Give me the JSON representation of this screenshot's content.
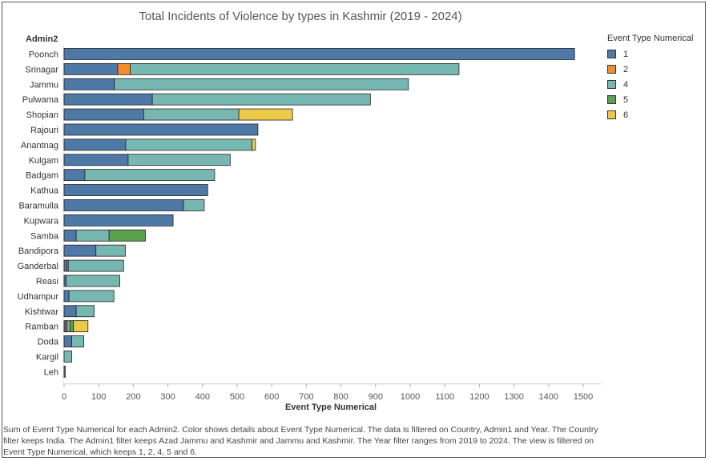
{
  "chart_data": {
    "type": "bar",
    "orientation": "horizontal",
    "stacked": true,
    "title": "Total Incidents of Violence by types  in Kashmir (2019 - 2024)",
    "row_header": "Admin2",
    "xlabel": "Event Type Numerical",
    "xlim": [
      0,
      1500
    ],
    "x_ticks": [
      0,
      100,
      200,
      300,
      400,
      500,
      600,
      700,
      800,
      900,
      1000,
      1100,
      1200,
      1300,
      1400,
      1500
    ],
    "categories": [
      "Poonch",
      "Srinagar",
      "Jammu",
      "Pulwama",
      "Shopian",
      "Rajouri",
      "Anantnag",
      "Kulgam",
      "Badgam",
      "Kathua",
      "Baramulla",
      "Kupwara",
      "Samba",
      "Bandipora",
      "Ganderbal",
      "Reasi",
      "Udhampur",
      "Kishtwar",
      "Ramban",
      "Doda",
      "Kargil",
      "Leh"
    ],
    "series": [
      {
        "name": "1",
        "color": "#4e79a7",
        "values": [
          1475,
          155,
          145,
          255,
          230,
          560,
          178,
          185,
          60,
          415,
          345,
          315,
          35,
          92,
          8,
          6,
          14,
          35,
          5,
          22,
          0,
          2
        ]
      },
      {
        "name": "2",
        "color": "#f28e2b",
        "values": [
          0,
          36,
          0,
          0,
          0,
          0,
          0,
          0,
          0,
          0,
          0,
          0,
          0,
          0,
          4,
          0,
          0,
          0,
          4,
          0,
          0,
          0
        ]
      },
      {
        "name": "4",
        "color": "#76b7b2",
        "values": [
          0,
          950,
          850,
          630,
          275,
          0,
          365,
          295,
          375,
          0,
          60,
          0,
          95,
          85,
          160,
          155,
          130,
          52,
          8,
          35,
          22,
          0
        ]
      },
      {
        "name": "5",
        "color": "#59a14f",
        "values": [
          0,
          0,
          0,
          0,
          0,
          0,
          0,
          0,
          0,
          0,
          0,
          0,
          105,
          0,
          0,
          0,
          0,
          0,
          10,
          0,
          0,
          0
        ]
      },
      {
        "name": "6",
        "color": "#edc948",
        "values": [
          0,
          0,
          0,
          0,
          155,
          0,
          10,
          0,
          0,
          0,
          0,
          0,
          0,
          0,
          0,
          0,
          0,
          0,
          42,
          0,
          0,
          0
        ]
      }
    ],
    "legend": {
      "title": "Event Type Numerical",
      "position": "right"
    },
    "grid": false
  },
  "caption": "Sum of Event Type Numerical for each Admin2.  Color shows details about Event Type Numerical. The data is filtered on Country, Admin1 and Year. The Country filter keeps India. The Admin1 filter keeps Azad Jammu and Kashmir and Jammu and Kashmir. The Year filter ranges from 2019 to 2024. The view is filtered on Event Type Numerical, which keeps 1, 2, 4, 5 and 6."
}
